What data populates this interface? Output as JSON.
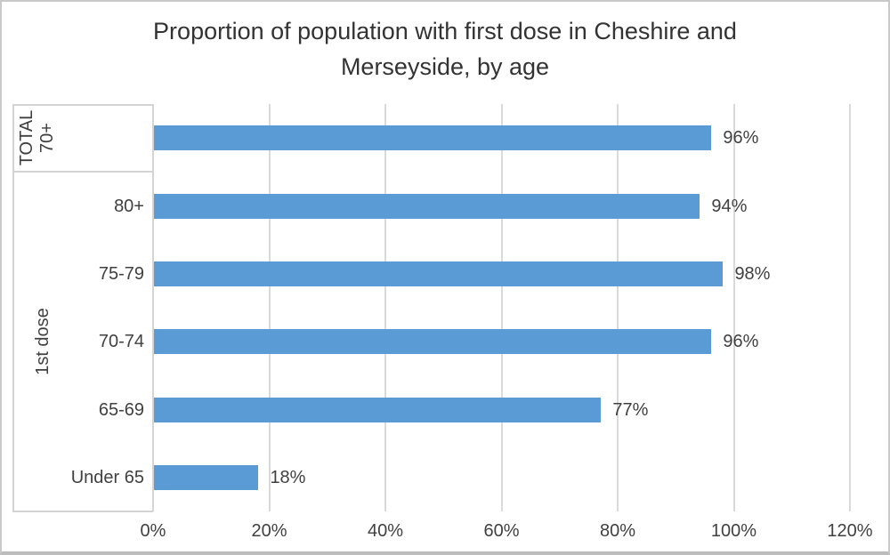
{
  "title": {
    "lines": [
      "Proportion of population with first dose in Cheshire and",
      "Merseyside, by age"
    ]
  },
  "chart_data": {
    "type": "bar",
    "orientation": "horizontal",
    "title": "Proportion of population with first dose in Cheshire and Merseyside, by age",
    "categories": [
      "70+",
      "80+",
      "75-79",
      "70-74",
      "65-69",
      "Under 65"
    ],
    "values": [
      96,
      94,
      98,
      96,
      77,
      18
    ],
    "rows": [
      {
        "category": "70+",
        "value": 96,
        "data_label": "96%",
        "rotated_category": true
      },
      {
        "category": "80+",
        "value": 94,
        "data_label": "94%",
        "rotated_category": false
      },
      {
        "category": "75-79",
        "value": 98,
        "data_label": "98%",
        "rotated_category": false
      },
      {
        "category": "70-74",
        "value": 96,
        "data_label": "96%",
        "rotated_category": false
      },
      {
        "category": "65-69",
        "value": 77,
        "data_label": "77%",
        "rotated_category": false
      },
      {
        "category": "Under 65",
        "value": 18,
        "data_label": "18%",
        "rotated_category": false
      }
    ],
    "groups": [
      {
        "label": "TOTAL",
        "span": 1
      },
      {
        "label": "1st dose",
        "span": 5
      }
    ],
    "x_axis": {
      "min": 0,
      "max": 120,
      "ticks": [
        {
          "value": 0,
          "label": "0%"
        },
        {
          "value": 20,
          "label": "20%"
        },
        {
          "value": 40,
          "label": "40%"
        },
        {
          "value": 60,
          "label": "60%"
        },
        {
          "value": 80,
          "label": "80%"
        },
        {
          "value": 100,
          "label": "100%"
        },
        {
          "value": 120,
          "label": "120%"
        }
      ],
      "grid": true
    },
    "legend": null,
    "colors": {
      "bar": "#5B9BD5",
      "gridline": "#dadada",
      "axis_line": "#d4d4d4",
      "label_text": "#404040",
      "title_text": "#333333",
      "background": "#ffffff"
    }
  }
}
